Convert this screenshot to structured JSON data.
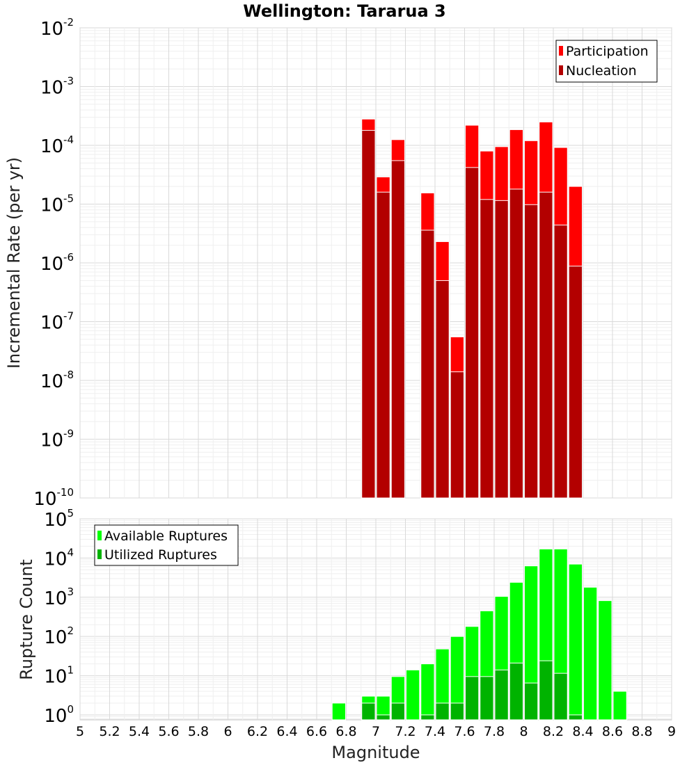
{
  "title": "Wellington: Tararua 3",
  "colors": {
    "participation": "#ff0000",
    "nucleation": "#b30000",
    "available": "#00ff00",
    "utilized": "#00b300"
  },
  "chart_data": [
    {
      "type": "bar",
      "title": "Wellington: Tararua 3",
      "xlabel": "",
      "ylabel": "Incremental Rate (per yr)",
      "yscale": "log",
      "ylim": [
        1e-10,
        0.01
      ],
      "xlim": [
        5,
        9
      ],
      "bar_width": 0.1,
      "grid": true,
      "legend_position": "top-right",
      "x": [
        6.95,
        7.05,
        7.15,
        7.35,
        7.45,
        7.55,
        7.65,
        7.75,
        7.85,
        7.95,
        8.05,
        8.15,
        8.25,
        8.35
      ],
      "series": [
        {
          "name": "Participation",
          "color": "#ff0000",
          "values": [
            0.00028,
            2.9e-05,
            0.000125,
            1.55e-05,
            2.3e-06,
            5.5e-08,
            0.00022,
            8e-05,
            9.5e-05,
            0.000185,
            0.00012,
            0.00025,
            9.2e-05,
            2e-05
          ]
        },
        {
          "name": "Nucleation",
          "color": "#b30000",
          "values": [
            0.00018,
            1.6e-05,
            5.5e-05,
            3.6e-06,
            5e-07,
            1.4e-08,
            4.2e-05,
            1.2e-05,
            1.15e-05,
            1.8e-05,
            9.8e-06,
            1.6e-05,
            4.4e-06,
            8.8e-07
          ]
        }
      ]
    },
    {
      "type": "bar",
      "title": "",
      "xlabel": "Magnitude",
      "ylabel": "Rupture Count",
      "yscale": "log",
      "ylim": [
        0.75,
        100000
      ],
      "xlim": [
        5,
        9
      ],
      "bar_width": 0.1,
      "grid": true,
      "legend_position": "top-left",
      "x": [
        6.75,
        6.95,
        7.05,
        7.15,
        7.25,
        7.35,
        7.45,
        7.55,
        7.65,
        7.75,
        7.85,
        7.95,
        8.05,
        8.15,
        8.25,
        8.35,
        8.45,
        8.55,
        8.65
      ],
      "series": [
        {
          "name": "Available Ruptures",
          "color": "#00ff00",
          "values": [
            2,
            3,
            3,
            9.5,
            14,
            20,
            48,
            100,
            180,
            450,
            1050,
            2400,
            6300,
            17000,
            17000,
            7000,
            1800,
            820,
            4
          ]
        },
        {
          "name": "Utilized Ruptures",
          "color": "#00b300",
          "values": [
            0,
            2,
            1,
            2,
            0,
            1,
            2,
            2,
            9.5,
            9.5,
            14,
            21,
            6.5,
            24,
            11.5,
            1,
            0,
            0,
            0
          ]
        }
      ]
    }
  ],
  "x_ticks": [
    "5",
    "5.2",
    "5.4",
    "5.6",
    "5.8",
    "6",
    "6.2",
    "6.4",
    "6.6",
    "6.8",
    "7",
    "7.2",
    "7.4",
    "7.6",
    "7.8",
    "8",
    "8.2",
    "8.4",
    "8.6",
    "8.8",
    "9"
  ],
  "top_y_ticks": [
    {
      "base": "10",
      "exp": "-2"
    },
    {
      "base": "10",
      "exp": "-3"
    },
    {
      "base": "10",
      "exp": "-4"
    },
    {
      "base": "10",
      "exp": "-5"
    },
    {
      "base": "10",
      "exp": "-6"
    },
    {
      "base": "10",
      "exp": "-7"
    },
    {
      "base": "10",
      "exp": "-8"
    },
    {
      "base": "10",
      "exp": "-9"
    },
    {
      "base": "10",
      "exp": "-10"
    }
  ],
  "bottom_y_ticks": [
    {
      "base": "10",
      "exp": "5"
    },
    {
      "base": "10",
      "exp": "4"
    },
    {
      "base": "10",
      "exp": "3"
    },
    {
      "base": "10",
      "exp": "2"
    },
    {
      "base": "10",
      "exp": "1"
    },
    {
      "base": "10",
      "exp": "0"
    }
  ]
}
